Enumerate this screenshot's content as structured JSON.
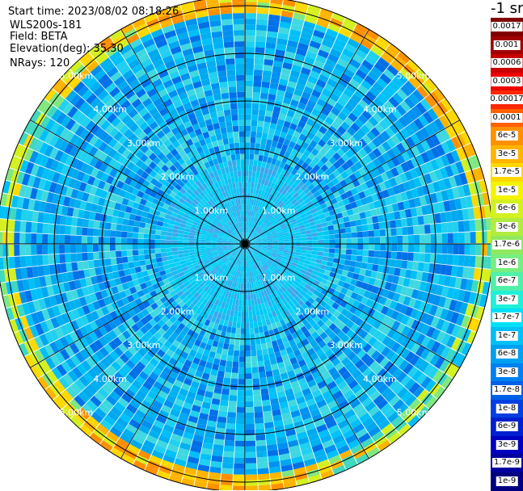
{
  "info": {
    "start_time": "Start time: 2023/08/02 08:18:26",
    "station": "WLS200s-181",
    "field": "Field: BETA",
    "elevation": "Elevation(deg): 35.30",
    "nrays": "NRays: 120"
  },
  "colorbar": {
    "title": "-1 sr",
    "labels": [
      "0.0017",
      "0.001",
      "0.0006",
      "0.0003",
      "0.00017",
      "0.0001",
      "6e-5",
      "3e-5",
      "1.7e-5",
      "1e-5",
      "6e-6",
      "3e-6",
      "1.7e-6",
      "1e-6",
      "6e-7",
      "3e-7",
      "1.7e-7",
      "1e-7",
      "6e-8",
      "3e-8",
      "1.7e-8",
      "1e-8",
      "6e-9",
      "3e-9",
      "1.7e-9",
      "1e-9"
    ],
    "colors": [
      "#800000",
      "#a00000",
      "#c80000",
      "#ee0000",
      "#ff2800",
      "#ff6000",
      "#ff9000",
      "#ffb400",
      "#ffd800",
      "#f4f400",
      "#d4f020",
      "#b0ec40",
      "#90e860",
      "#78ee80",
      "#50f0a8",
      "#20f0d8",
      "#00e0f8",
      "#00c0f8",
      "#00a0f0",
      "#0080f0",
      "#0060e8",
      "#0040e0",
      "#0020d0",
      "#0000c0",
      "#0000a0",
      "#000080"
    ]
  },
  "chart_data": {
    "type": "heatmap",
    "subtype": "polar-ppi",
    "field": "BETA",
    "units": "sr^-1",
    "nrays": 120,
    "range_rings_km": [
      1,
      2,
      3,
      4,
      5
    ],
    "range_ring_labels": [
      "1.00km",
      "2.00km",
      "3.00km",
      "4.00km",
      "5.00km"
    ],
    "max_range_km": 5.2,
    "spoke_interval_deg": 30,
    "typical_value": "1e-7 to 3e-7",
    "edge_value": "6e-6 to 3e-5"
  }
}
